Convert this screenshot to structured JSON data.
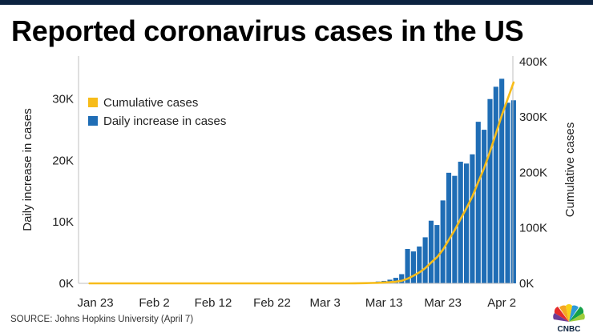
{
  "title": "Reported coronavirus cases in the US",
  "source": "SOURCE: Johns Hopkins University (April 7)",
  "logo": {
    "text": "CNBC"
  },
  "colors": {
    "bar": "#1f6db5",
    "line": "#f7bc1a",
    "axis": "#bfbfbf",
    "header": "#0c2340"
  },
  "chart_data": {
    "type": "bar",
    "title": "Reported coronavirus cases in the US",
    "ylabel": "Daily increase in cases",
    "y2label": "Cumulative cases",
    "ylim": [
      0,
      37000
    ],
    "y2lim": [
      0,
      410000
    ],
    "yticks": [
      {
        "value": 0,
        "label": "0K"
      },
      {
        "value": 10000,
        "label": "10K"
      },
      {
        "value": 20000,
        "label": "20K"
      },
      {
        "value": 30000,
        "label": "30K"
      }
    ],
    "y2ticks": [
      {
        "value": 0,
        "label": "0K"
      },
      {
        "value": 100000,
        "label": "100K"
      },
      {
        "value": 200000,
        "label": "200K"
      },
      {
        "value": 300000,
        "label": "300K"
      },
      {
        "value": 400000,
        "label": "400K"
      }
    ],
    "xticks": [
      {
        "index": 1,
        "label": "Jan 23"
      },
      {
        "index": 11,
        "label": "Feb 2"
      },
      {
        "index": 21,
        "label": "Feb 12"
      },
      {
        "index": 31,
        "label": "Feb 22"
      },
      {
        "index": 40,
        "label": "Mar 3"
      },
      {
        "index": 50,
        "label": "Mar 13"
      },
      {
        "index": 60,
        "label": "Mar 23"
      },
      {
        "index": 70,
        "label": "Apr 2"
      }
    ],
    "legend": [
      {
        "name": "Cumulative cases",
        "kind": "line"
      },
      {
        "name": "Daily increase in cases",
        "kind": "bar"
      }
    ],
    "series": [
      {
        "name": "Daily increase in cases",
        "kind": "bar",
        "values": [
          0,
          0,
          0,
          0,
          0,
          0,
          0,
          0,
          0,
          0,
          0,
          0,
          0,
          0,
          0,
          0,
          0,
          0,
          0,
          0,
          0,
          0,
          0,
          0,
          0,
          0,
          0,
          0,
          0,
          0,
          0,
          0,
          0,
          0,
          0,
          0,
          0,
          0,
          0,
          0,
          0,
          0,
          0,
          0,
          0,
          50,
          100,
          150,
          200,
          300,
          400,
          600,
          900,
          1500,
          5600,
          5200,
          6000,
          7500,
          10200,
          9500,
          13500,
          18000,
          17500,
          19800,
          19500,
          21000,
          26300,
          25000,
          30000,
          32000,
          33300,
          29400,
          29800
        ]
      },
      {
        "name": "Cumulative cases",
        "kind": "line",
        "values": [
          0,
          0,
          0,
          0,
          0,
          0,
          0,
          0,
          0,
          0,
          0,
          0,
          0,
          0,
          0,
          0,
          0,
          0,
          0,
          0,
          0,
          0,
          0,
          0,
          0,
          0,
          0,
          0,
          0,
          0,
          0,
          0,
          0,
          0,
          0,
          0,
          0,
          0,
          0,
          0,
          0,
          0,
          0,
          0,
          0,
          200,
          300,
          500,
          700,
          1000,
          1600,
          2200,
          3100,
          4600,
          8400,
          13700,
          19800,
          27300,
          37500,
          47000,
          60500,
          78500,
          96000,
          116000,
          135500,
          156500,
          182800,
          207800,
          237800,
          269800,
          303100,
          332500,
          362300
        ]
      }
    ]
  }
}
